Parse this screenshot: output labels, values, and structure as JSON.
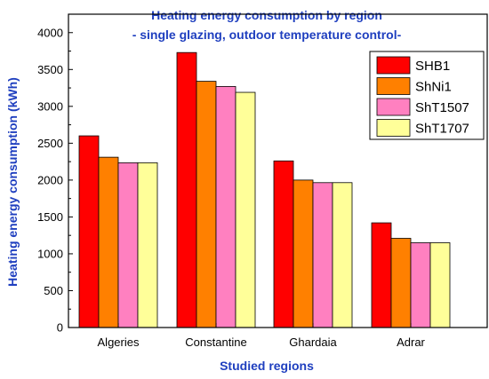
{
  "chart_data": {
    "type": "bar",
    "title": "Heating energy consumption by region",
    "subtitle": "- single glazing, outdoor temperature control-",
    "xlabel": "Studied regions",
    "ylabel": "Heating energy consumption (kWh)",
    "categories": [
      "Algeries",
      "Constantine",
      "Ghardaia",
      "Adrar"
    ],
    "series": [
      {
        "name": "SHB1",
        "color": "#ff0000",
        "values": [
          2600,
          3730,
          2260,
          1420
        ]
      },
      {
        "name": "ShNi1",
        "color": "#ff8000",
        "values": [
          2310,
          3340,
          2000,
          1210
        ]
      },
      {
        "name": "ShT1507",
        "color": "#ff80c0",
        "values": [
          2235,
          3270,
          1965,
          1150
        ]
      },
      {
        "name": "ShT1707",
        "color": "#ffff99",
        "values": [
          2235,
          3190,
          1965,
          1150
        ]
      }
    ],
    "ylim": [
      0,
      4250
    ],
    "yticks": [
      0,
      500,
      1000,
      1500,
      2000,
      2500,
      3000,
      3500,
      4000
    ],
    "legend_position": "top-right",
    "grid": false
  }
}
